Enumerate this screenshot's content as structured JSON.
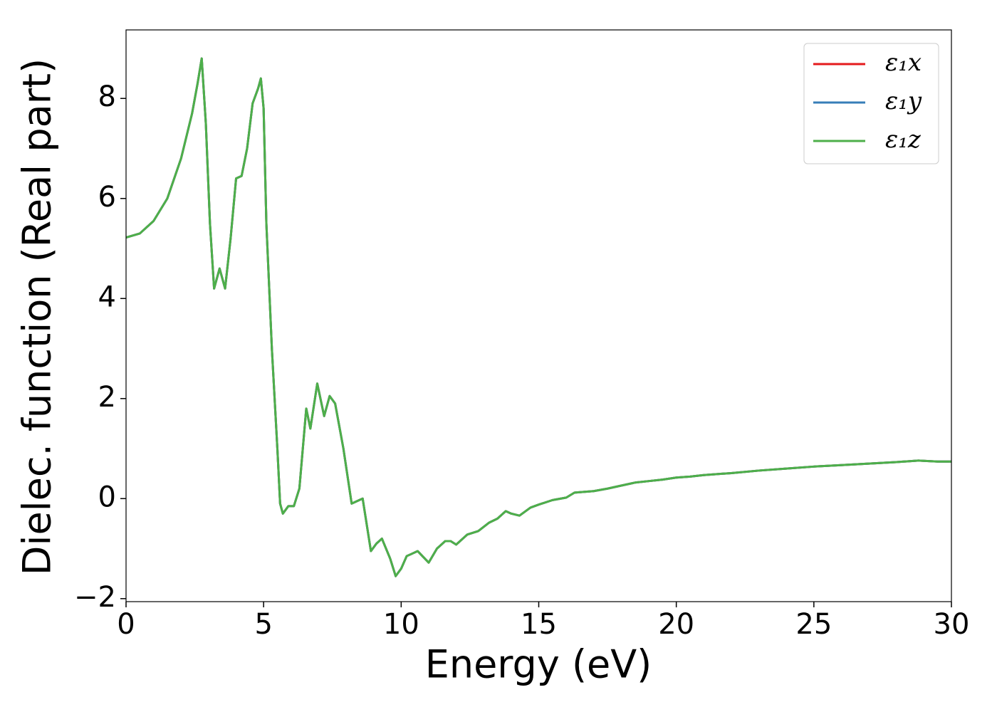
{
  "chart_data": {
    "type": "line",
    "xlabel": "Energy (eV)",
    "ylabel": "Dielec. function (Real part)",
    "x": [
      0,
      0.5,
      1.0,
      1.5,
      2.0,
      2.4,
      2.6,
      2.75,
      2.9,
      3.05,
      3.2,
      3.4,
      3.6,
      3.8,
      4.0,
      4.2,
      4.4,
      4.6,
      4.8,
      4.9,
      5.0,
      5.1,
      5.3,
      5.5,
      5.6,
      5.7,
      5.9,
      6.1,
      6.3,
      6.55,
      6.7,
      6.95,
      7.2,
      7.4,
      7.6,
      7.9,
      8.2,
      8.4,
      8.6,
      8.9,
      9.1,
      9.3,
      9.6,
      9.8,
      10.0,
      10.2,
      10.4,
      10.6,
      11.0,
      11.3,
      11.6,
      11.8,
      12.0,
      12.4,
      12.8,
      13.2,
      13.5,
      13.8,
      14.0,
      14.3,
      14.7,
      15.0,
      15.5,
      16.0,
      16.3,
      17.0,
      17.5,
      18.0,
      18.5,
      19.0,
      19.5,
      20.0,
      20.5,
      21.0,
      22.0,
      23.0,
      24.0,
      25.0,
      26.0,
      27.0,
      28.0,
      28.8,
      29.5,
      30.0
    ],
    "series": [
      {
        "name": "ε₁x",
        "color": "#e41a1c",
        "values": [
          5.22,
          5.3,
          5.55,
          6.0,
          6.8,
          7.7,
          8.3,
          8.8,
          7.5,
          5.5,
          4.2,
          4.6,
          4.2,
          5.2,
          6.4,
          6.45,
          7.0,
          7.9,
          8.2,
          8.4,
          7.8,
          5.5,
          3.0,
          1.0,
          -0.1,
          -0.3,
          -0.15,
          -0.15,
          0.2,
          1.8,
          1.4,
          2.3,
          1.65,
          2.05,
          1.9,
          1.0,
          -0.1,
          -0.05,
          0,
          -1.05,
          -0.9,
          -0.8,
          -1.2,
          -1.55,
          -1.4,
          -1.15,
          -1.1,
          -1.05,
          -1.28,
          -1.0,
          -0.85,
          -0.85,
          -0.92,
          -0.72,
          -0.65,
          -0.48,
          -0.4,
          -0.25,
          -0.3,
          -0.34,
          -0.18,
          -0.12,
          -0.03,
          0.02,
          0.12,
          0.15,
          0.2,
          0.26,
          0.32,
          0.35,
          0.38,
          0.42,
          0.44,
          0.47,
          0.51,
          0.56,
          0.6,
          0.64,
          0.67,
          0.7,
          0.73,
          0.76,
          0.74,
          0.74
        ]
      },
      {
        "name": "ε₁y",
        "color": "#377eb8",
        "values": [
          5.22,
          5.3,
          5.55,
          6.0,
          6.8,
          7.7,
          8.3,
          8.8,
          7.5,
          5.5,
          4.2,
          4.6,
          4.2,
          5.2,
          6.4,
          6.45,
          7.0,
          7.9,
          8.2,
          8.4,
          7.8,
          5.5,
          3.0,
          1.0,
          -0.1,
          -0.3,
          -0.15,
          -0.15,
          0.2,
          1.8,
          1.4,
          2.3,
          1.65,
          2.05,
          1.9,
          1.0,
          -0.1,
          -0.05,
          0,
          -1.05,
          -0.9,
          -0.8,
          -1.2,
          -1.55,
          -1.4,
          -1.15,
          -1.1,
          -1.05,
          -1.28,
          -1.0,
          -0.85,
          -0.85,
          -0.92,
          -0.72,
          -0.65,
          -0.48,
          -0.4,
          -0.25,
          -0.3,
          -0.34,
          -0.18,
          -0.12,
          -0.03,
          0.02,
          0.12,
          0.15,
          0.2,
          0.26,
          0.32,
          0.35,
          0.38,
          0.42,
          0.44,
          0.47,
          0.51,
          0.56,
          0.6,
          0.64,
          0.67,
          0.7,
          0.73,
          0.76,
          0.74,
          0.74
        ]
      },
      {
        "name": "ε₁z",
        "color": "#4daf4a",
        "values": [
          5.22,
          5.3,
          5.55,
          6.0,
          6.8,
          7.7,
          8.3,
          8.8,
          7.5,
          5.5,
          4.2,
          4.6,
          4.2,
          5.2,
          6.4,
          6.45,
          7.0,
          7.9,
          8.2,
          8.4,
          7.8,
          5.5,
          3.0,
          1.0,
          -0.1,
          -0.3,
          -0.15,
          -0.15,
          0.2,
          1.8,
          1.4,
          2.3,
          1.65,
          2.05,
          1.9,
          1.0,
          -0.1,
          -0.05,
          0,
          -1.05,
          -0.9,
          -0.8,
          -1.2,
          -1.55,
          -1.4,
          -1.15,
          -1.1,
          -1.05,
          -1.28,
          -1.0,
          -0.85,
          -0.85,
          -0.92,
          -0.72,
          -0.65,
          -0.48,
          -0.4,
          -0.25,
          -0.3,
          -0.34,
          -0.18,
          -0.12,
          -0.03,
          0.02,
          0.12,
          0.15,
          0.2,
          0.26,
          0.32,
          0.35,
          0.38,
          0.42,
          0.44,
          0.47,
          0.51,
          0.56,
          0.6,
          0.64,
          0.67,
          0.7,
          0.73,
          0.76,
          0.74,
          0.74
        ]
      }
    ],
    "xlim": [
      0,
      30
    ],
    "xticks": [
      0,
      5,
      10,
      15,
      20,
      25,
      30
    ],
    "ylim": [
      -2.06,
      9.37
    ],
    "yticks": [
      {
        "value": -2,
        "label": "−2"
      },
      0,
      2,
      4,
      6,
      8
    ],
    "grid": false,
    "legend": "upper right"
  }
}
